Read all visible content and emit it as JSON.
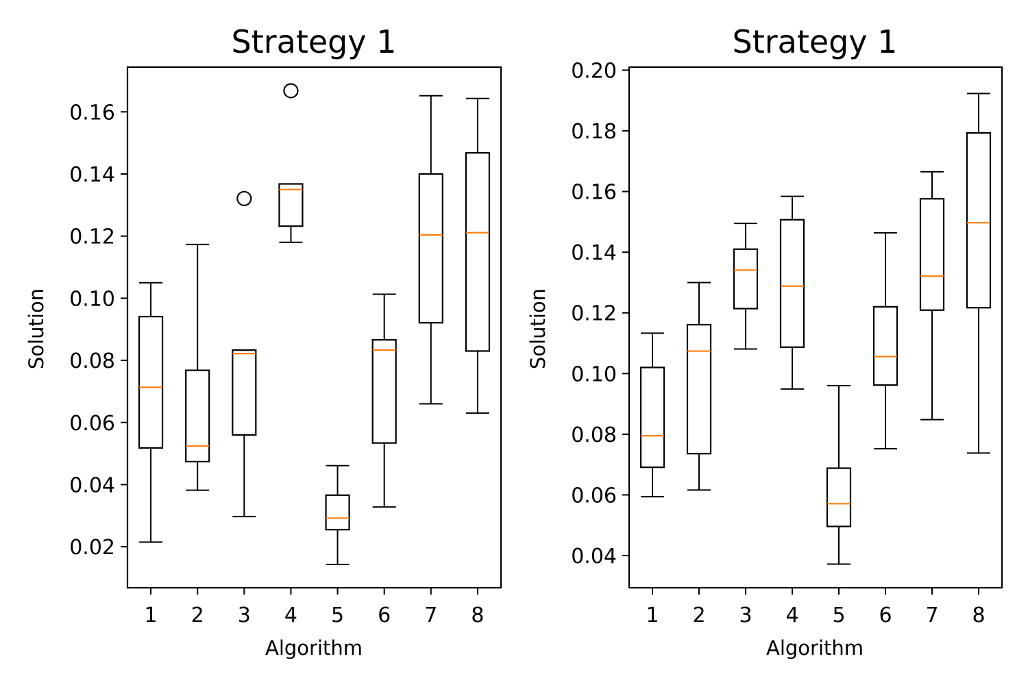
{
  "chart_data": [
    {
      "type": "box",
      "title": "Strategy 1",
      "xlabel": "Algorithm",
      "ylabel": "Solution",
      "categories": [
        "1",
        "2",
        "3",
        "4",
        "5",
        "6",
        "7",
        "8"
      ],
      "ylim": [
        0.0068,
        0.1744
      ],
      "yticks": [
        0.02,
        0.04,
        0.06,
        0.08,
        0.1,
        0.12,
        0.14,
        0.16
      ],
      "ytick_labels": [
        "0.02",
        "0.04",
        "0.06",
        "0.08",
        "0.10",
        "0.12",
        "0.14",
        "0.16"
      ],
      "grid": false,
      "boxes": [
        {
          "whisker_low": 0.0215,
          "q1": 0.0518,
          "median": 0.0713,
          "q3": 0.0941,
          "whisker_high": 0.105,
          "outliers": []
        },
        {
          "whisker_low": 0.0382,
          "q1": 0.0474,
          "median": 0.0524,
          "q3": 0.0768,
          "whisker_high": 0.1173,
          "outliers": []
        },
        {
          "whisker_low": 0.0297,
          "q1": 0.056,
          "median": 0.0822,
          "q3": 0.0833,
          "whisker_high": 0.0833,
          "outliers": [
            0.1321
          ]
        },
        {
          "whisker_low": 0.118,
          "q1": 0.1232,
          "median": 0.135,
          "q3": 0.1368,
          "whisker_high": 0.1368,
          "outliers": [
            0.1668
          ]
        },
        {
          "whisker_low": 0.0143,
          "q1": 0.0255,
          "median": 0.0292,
          "q3": 0.0366,
          "whisker_high": 0.0461,
          "outliers": []
        },
        {
          "whisker_low": 0.0328,
          "q1": 0.0534,
          "median": 0.0833,
          "q3": 0.0866,
          "whisker_high": 0.1013,
          "outliers": []
        },
        {
          "whisker_low": 0.066,
          "q1": 0.0921,
          "median": 0.1204,
          "q3": 0.14,
          "whisker_high": 0.1652,
          "outliers": []
        },
        {
          "whisker_low": 0.063,
          "q1": 0.083,
          "median": 0.1211,
          "q3": 0.1468,
          "whisker_high": 0.1643,
          "outliers": []
        }
      ]
    },
    {
      "type": "box",
      "title": "Strategy 1",
      "xlabel": "Algorithm",
      "ylabel": "Solution",
      "categories": [
        "1",
        "2",
        "3",
        "4",
        "5",
        "6",
        "7",
        "8"
      ],
      "ylim": [
        0.0294,
        0.201
      ],
      "yticks": [
        0.04,
        0.06,
        0.08,
        0.1,
        0.12,
        0.14,
        0.16,
        0.18,
        0.2
      ],
      "ytick_labels": [
        "0.04",
        "0.06",
        "0.08",
        "0.10",
        "0.12",
        "0.14",
        "0.16",
        "0.18",
        "0.20"
      ],
      "grid": false,
      "boxes": [
        {
          "whisker_low": 0.0594,
          "q1": 0.0691,
          "median": 0.0795,
          "q3": 0.102,
          "whisker_high": 0.1133,
          "outliers": []
        },
        {
          "whisker_low": 0.0616,
          "q1": 0.0736,
          "median": 0.1074,
          "q3": 0.1161,
          "whisker_high": 0.13,
          "outliers": []
        },
        {
          "whisker_low": 0.1081,
          "q1": 0.1214,
          "median": 0.1341,
          "q3": 0.141,
          "whisker_high": 0.1495,
          "outliers": []
        },
        {
          "whisker_low": 0.0949,
          "q1": 0.1087,
          "median": 0.1288,
          "q3": 0.1507,
          "whisker_high": 0.1584,
          "outliers": []
        },
        {
          "whisker_low": 0.0372,
          "q1": 0.0496,
          "median": 0.0571,
          "q3": 0.0688,
          "whisker_high": 0.096,
          "outliers": []
        },
        {
          "whisker_low": 0.0752,
          "q1": 0.0962,
          "median": 0.1056,
          "q3": 0.122,
          "whisker_high": 0.1464,
          "outliers": []
        },
        {
          "whisker_low": 0.0848,
          "q1": 0.1209,
          "median": 0.1321,
          "q3": 0.1576,
          "whisker_high": 0.1665,
          "outliers": []
        },
        {
          "whisker_low": 0.0738,
          "q1": 0.1217,
          "median": 0.1497,
          "q3": 0.1793,
          "whisker_high": 0.1923,
          "outliers": []
        }
      ]
    }
  ]
}
